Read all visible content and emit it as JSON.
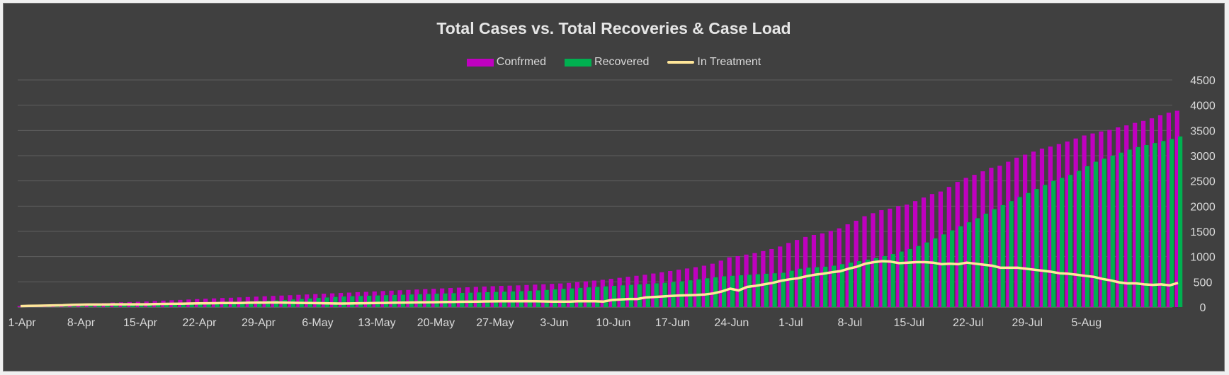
{
  "chart_data": {
    "type": "bar",
    "title": "Total Cases vs. Total Recoveries & Case Load",
    "xlabel": "",
    "ylabel": "",
    "ylim": [
      0,
      4500
    ],
    "y_ticks": [
      "0",
      "500",
      "1000",
      "1500",
      "2000",
      "2500",
      "3000",
      "3500",
      "4000",
      "4500"
    ],
    "x_tick_labels": [
      "1-Apr",
      "8-Apr",
      "15-Apr",
      "22-Apr",
      "29-Apr",
      "6-May",
      "13-May",
      "20-May",
      "27-May",
      "3-Jun",
      "10-Jun",
      "17-Jun",
      "24-Jun",
      "1-Jul",
      "8-Jul",
      "15-Jul",
      "22-Jul",
      "29-Jul",
      "5-Aug"
    ],
    "grid": true,
    "legend_position": "top",
    "series": [
      {
        "name": "Confrmed",
        "kind": "bar",
        "color": "#c000c0",
        "values": [
          20,
          25,
          28,
          33,
          38,
          45,
          55,
          62,
          70,
          75,
          80,
          90,
          95,
          100,
          105,
          110,
          120,
          128,
          135,
          142,
          150,
          158,
          165,
          172,
          180,
          185,
          192,
          200,
          207,
          214,
          221,
          228,
          235,
          243,
          250,
          258,
          265,
          272,
          280,
          287,
          295,
          302,
          310,
          318,
          325,
          333,
          340,
          348,
          355,
          362,
          370,
          378,
          385,
          392,
          400,
          407,
          414,
          420,
          425,
          430,
          438,
          445,
          452,
          460,
          468,
          480,
          495,
          510,
          525,
          540,
          560,
          580,
          600,
          620,
          640,
          665,
          690,
          715,
          740,
          765,
          790,
          820,
          860,
          920,
          985,
          1010,
          1040,
          1070,
          1110,
          1150,
          1200,
          1270,
          1330,
          1390,
          1430,
          1460,
          1510,
          1560,
          1640,
          1710,
          1800,
          1860,
          1920,
          1950,
          2000,
          2030,
          2100,
          2170,
          2240,
          2290,
          2380,
          2480,
          2560,
          2620,
          2690,
          2760,
          2800,
          2880,
          2960,
          3020,
          3080,
          3140,
          3180,
          3230,
          3280,
          3340,
          3400,
          3440,
          3480,
          3510,
          3560,
          3600,
          3650,
          3690,
          3740,
          3800,
          3850,
          3890
        ]
      },
      {
        "name": "Recovered",
        "kind": "bar",
        "color": "#00b050",
        "values": [
          0,
          0,
          2,
          3,
          5,
          8,
          12,
          15,
          20,
          25,
          30,
          35,
          40,
          45,
          50,
          55,
          60,
          65,
          70,
          75,
          80,
          85,
          90,
          95,
          100,
          105,
          110,
          115,
          120,
          125,
          130,
          140,
          150,
          160,
          170,
          180,
          190,
          200,
          210,
          215,
          220,
          225,
          230,
          235,
          240,
          245,
          250,
          255,
          260,
          265,
          270,
          275,
          280,
          285,
          290,
          295,
          300,
          305,
          310,
          315,
          320,
          330,
          340,
          350,
          360,
          370,
          380,
          390,
          400,
          410,
          420,
          430,
          440,
          450,
          460,
          470,
          480,
          495,
          510,
          530,
          550,
          570,
          590,
          610,
          620,
          630,
          640,
          650,
          660,
          670,
          680,
          720,
          760,
          780,
          790,
          800,
          820,
          850,
          880,
          910,
          940,
          970,
          1010,
          1050,
          1100,
          1150,
          1210,
          1280,
          1360,
          1440,
          1520,
          1600,
          1680,
          1760,
          1850,
          1940,
          2020,
          2100,
          2180,
          2260,
          2340,
          2420,
          2500,
          2560,
          2620,
          2700,
          2790,
          2880,
          2940,
          3000,
          3060,
          3120,
          3170,
          3210,
          3250,
          3290,
          3330,
          3380
        ]
      },
      {
        "name": "In Treatment",
        "kind": "line",
        "color": "#ffe699",
        "values": [
          20,
          25,
          26,
          30,
          33,
          37,
          43,
          47,
          50,
          50,
          50,
          55,
          55,
          55,
          55,
          55,
          60,
          63,
          65,
          67,
          70,
          73,
          75,
          77,
          80,
          80,
          82,
          85,
          87,
          89,
          91,
          88,
          85,
          83,
          80,
          78,
          75,
          72,
          70,
          72,
          75,
          77,
          80,
          83,
          85,
          88,
          90,
          93,
          95,
          97,
          100,
          103,
          105,
          107,
          110,
          112,
          114,
          115,
          115,
          115,
          118,
          115,
          112,
          110,
          108,
          110,
          115,
          115,
          115,
          110,
          140,
          150,
          160,
          160,
          190,
          200,
          210,
          220,
          230,
          235,
          240,
          250,
          270,
          310,
          365,
          330,
          400,
          420,
          450,
          480,
          520,
          550,
          570,
          610,
          640,
          660,
          690,
          710,
          760,
          800,
          860,
          890,
          910,
          900,
          870,
          880,
          890,
          890,
          880,
          850,
          860,
          850,
          880,
          860,
          840,
          820,
          780,
          780,
          780,
          760,
          740,
          720,
          700,
          670,
          660,
          640,
          620,
          600,
          560,
          530,
          490,
          470,
          470,
          450,
          440,
          450,
          430,
          480
        ]
      }
    ]
  }
}
